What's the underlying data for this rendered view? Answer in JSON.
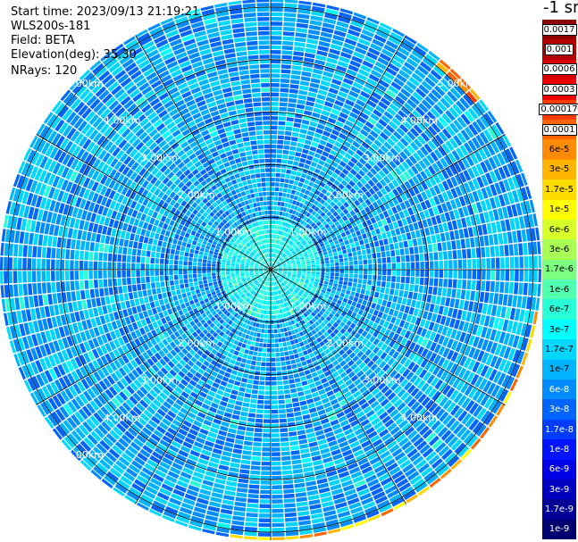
{
  "info": {
    "start_time": "Start time: 2023/09/13 21:19:21",
    "instrument": "WLS200s-181",
    "field": "Field: BETA",
    "elevation": "Elevation(deg): 35.30",
    "nrays": "NRays: 120"
  },
  "colorbar": {
    "unit": "-1 sr",
    "entries": [
      {
        "label": "0.0017",
        "color": "#8c0000"
      },
      {
        "label": "0.001",
        "color": "#b40000"
      },
      {
        "label": "0.0006",
        "color": "#d80000"
      },
      {
        "label": "0.0003",
        "color": "#f00000"
      },
      {
        "label": "0.00017",
        "color": "#ff3c00"
      },
      {
        "label": "0.0001",
        "color": "#ff6400"
      },
      {
        "label": "6e-5",
        "color": "#ff8c00"
      },
      {
        "label": "3e-5",
        "color": "#ffb400"
      },
      {
        "label": "1.7e-5",
        "color": "#ffdc00"
      },
      {
        "label": "1e-5",
        "color": "#ffff00"
      },
      {
        "label": "6e-6",
        "color": "#d7ff28"
      },
      {
        "label": "3e-6",
        "color": "#aaff55"
      },
      {
        "label": "1.7e-6",
        "color": "#7dff82"
      },
      {
        "label": "1e-6",
        "color": "#50ffaf"
      },
      {
        "label": "6e-7",
        "color": "#28ffd7"
      },
      {
        "label": "3e-7",
        "color": "#00ffff"
      },
      {
        "label": "1.7e-7",
        "color": "#00d7ff"
      },
      {
        "label": "1e-7",
        "color": "#00b4ff"
      },
      {
        "label": "6e-8",
        "color": "#008cff"
      },
      {
        "label": "3e-8",
        "color": "#0064ff"
      },
      {
        "label": "1.7e-8",
        "color": "#003cff"
      },
      {
        "label": "1e-8",
        "color": "#0014ff"
      },
      {
        "label": "6e-9",
        "color": "#0000e6"
      },
      {
        "label": "3e-9",
        "color": "#0000be"
      },
      {
        "label": "1.7e-9",
        "color": "#000096"
      },
      {
        "label": "1e-9",
        "color": "#00006e"
      }
    ]
  },
  "chart_data": {
    "type": "heatmap",
    "projection": "polar-ppi",
    "field": "BETA",
    "unit": "-1 sr",
    "elevation_deg": 35.3,
    "nrays": 120,
    "range_rings_km": [
      1,
      2,
      3,
      4,
      5
    ],
    "ring_labels": [
      "1.00km",
      "2.00km",
      "3.00km",
      "4.00km",
      "5.00km"
    ],
    "max_range_km": 6.2,
    "background_level": "approx 3e-8 to 1e-7 (blue/cyan)",
    "features": [
      {
        "description": "high-backscatter arc",
        "azimuth_deg": [
          100,
          190
        ],
        "range_km": [
          5.1,
          5.6
        ],
        "level": "1.7e-5 to 1e-4"
      },
      {
        "description": "high-backscatter arc",
        "azimuth_deg": [
          250,
          290
        ],
        "range_km": [
          5.3,
          6.0
        ],
        "level": "1e-5 to 6e-5"
      },
      {
        "description": "patches",
        "azimuth_deg": [
          335,
          25
        ],
        "range_km": [
          5.5,
          6.2
        ],
        "level": "1e-5 to 1e-4"
      },
      {
        "description": "patch",
        "azimuth_deg": [
          40,
          50
        ],
        "range_km": [
          5.0,
          5.8
        ],
        "level": "6e-5 to 0.0003"
      }
    ]
  }
}
